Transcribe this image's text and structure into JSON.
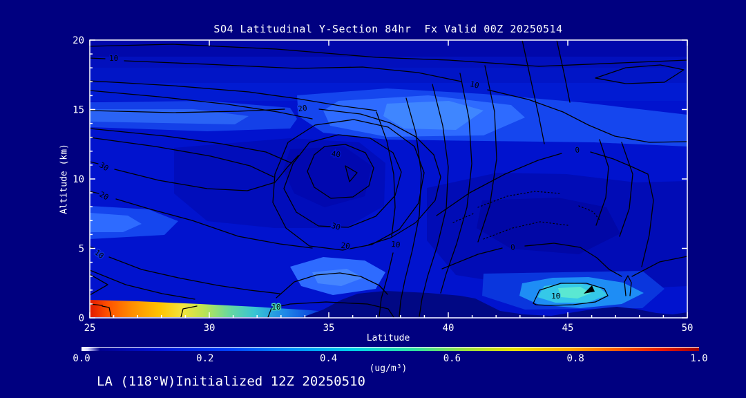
{
  "page": {
    "background": "#000080",
    "footer": "LA (118°W)Initialized 12Z 20250510"
  },
  "chart_data": {
    "type": "contour",
    "title": "SO4 Latitudinal Y-Section 84hr  Fx Valid 00Z 20250514",
    "xlabel": "Latitude",
    "ylabel": "Altitude (km)",
    "xlim": [
      25,
      50
    ],
    "ylim": [
      0,
      20
    ],
    "x_ticks": [
      25,
      30,
      35,
      40,
      45,
      50
    ],
    "x_minor_every": 1,
    "y_ticks": [
      0,
      5,
      10,
      15,
      20
    ],
    "y_minor_every": 1,
    "grid": false,
    "colorbar": {
      "min": 0.0,
      "max": 1.0,
      "ticks": [
        "0.0",
        "0.2",
        "0.4",
        "0.6",
        "0.8",
        "1.0"
      ],
      "label": "(ug/m³)",
      "gradient": [
        {
          "color": "#ffffff",
          "pos": 0
        },
        {
          "color": "#d8d8ff",
          "pos": 1
        },
        {
          "color": "#000090",
          "pos": 3
        },
        {
          "color": "#0010d0",
          "pos": 12
        },
        {
          "color": "#0040ff",
          "pos": 24
        },
        {
          "color": "#0090ff",
          "pos": 34
        },
        {
          "color": "#00d0e8",
          "pos": 44
        },
        {
          "color": "#30e0a0",
          "pos": 54
        },
        {
          "color": "#98e040",
          "pos": 62
        },
        {
          "color": "#e8e000",
          "pos": 70
        },
        {
          "color": "#ffa800",
          "pos": 79
        },
        {
          "color": "#ff5800",
          "pos": 87
        },
        {
          "color": "#e81800",
          "pos": 94
        },
        {
          "color": "#a00000",
          "pos": 100
        }
      ]
    },
    "contour_line_labels": [
      {
        "text": "10",
        "lat": 26.0,
        "km": 18.7,
        "rot": 0,
        "halo": "#0210bd"
      },
      {
        "text": "20",
        "lat": 33.9,
        "km": 15.1,
        "rot": -8,
        "halo": "#1546ee"
      },
      {
        "text": "10",
        "lat": 41.1,
        "km": 16.8,
        "rot": 14,
        "halo": "#011bd2"
      },
      {
        "text": "40",
        "lat": 35.3,
        "km": 11.8,
        "rot": 8,
        "halo": "#0113ce"
      },
      {
        "text": "30",
        "lat": 35.3,
        "km": 6.6,
        "rot": 14,
        "halo": "#0113ce"
      },
      {
        "text": "20",
        "lat": 35.7,
        "km": 5.2,
        "rot": 6,
        "halo": "#0113ce"
      },
      {
        "text": "10",
        "lat": 37.8,
        "km": 5.3,
        "rot": 6,
        "halo": "#0113ce"
      },
      {
        "text": "30",
        "lat": 25.6,
        "km": 10.9,
        "rot": 32,
        "halo": "#0113ce"
      },
      {
        "text": "20",
        "lat": 25.6,
        "km": 8.8,
        "rot": 28,
        "halo": "#0113ce"
      },
      {
        "text": "10",
        "lat": 25.4,
        "km": 4.6,
        "rot": 38,
        "halo": "#0e30dd"
      },
      {
        "text": "0",
        "lat": 45.4,
        "km": 12.1,
        "rot": -4,
        "halo": "#011bd2"
      },
      {
        "text": "0",
        "lat": 42.7,
        "km": 5.1,
        "rot": -4,
        "halo": "#010cb6"
      },
      {
        "text": "10",
        "lat": 32.8,
        "km": 0.8,
        "rot": 0,
        "halo": "#49d6b8"
      },
      {
        "text": "10",
        "lat": 44.5,
        "km": 1.6,
        "rot": 0,
        "halo": "#35c8e8"
      }
    ],
    "description": "Filled contours of SO4 concentration (ug/m3) by latitude and altitude: mostly 0-0.2 blues aloft; surface maximum near 25-27N (~0.8-1.0) below 1 km tapering to cyan by 33N; secondary surface maximum (~0.4-0.5) near 43-46N below 2 km; black line contours labeled 0-40 with closed 40 center near 35-36N at 12 km and 0-line over 41-47N; dark terrain silhouette along bottom from 34N to 50N."
  }
}
